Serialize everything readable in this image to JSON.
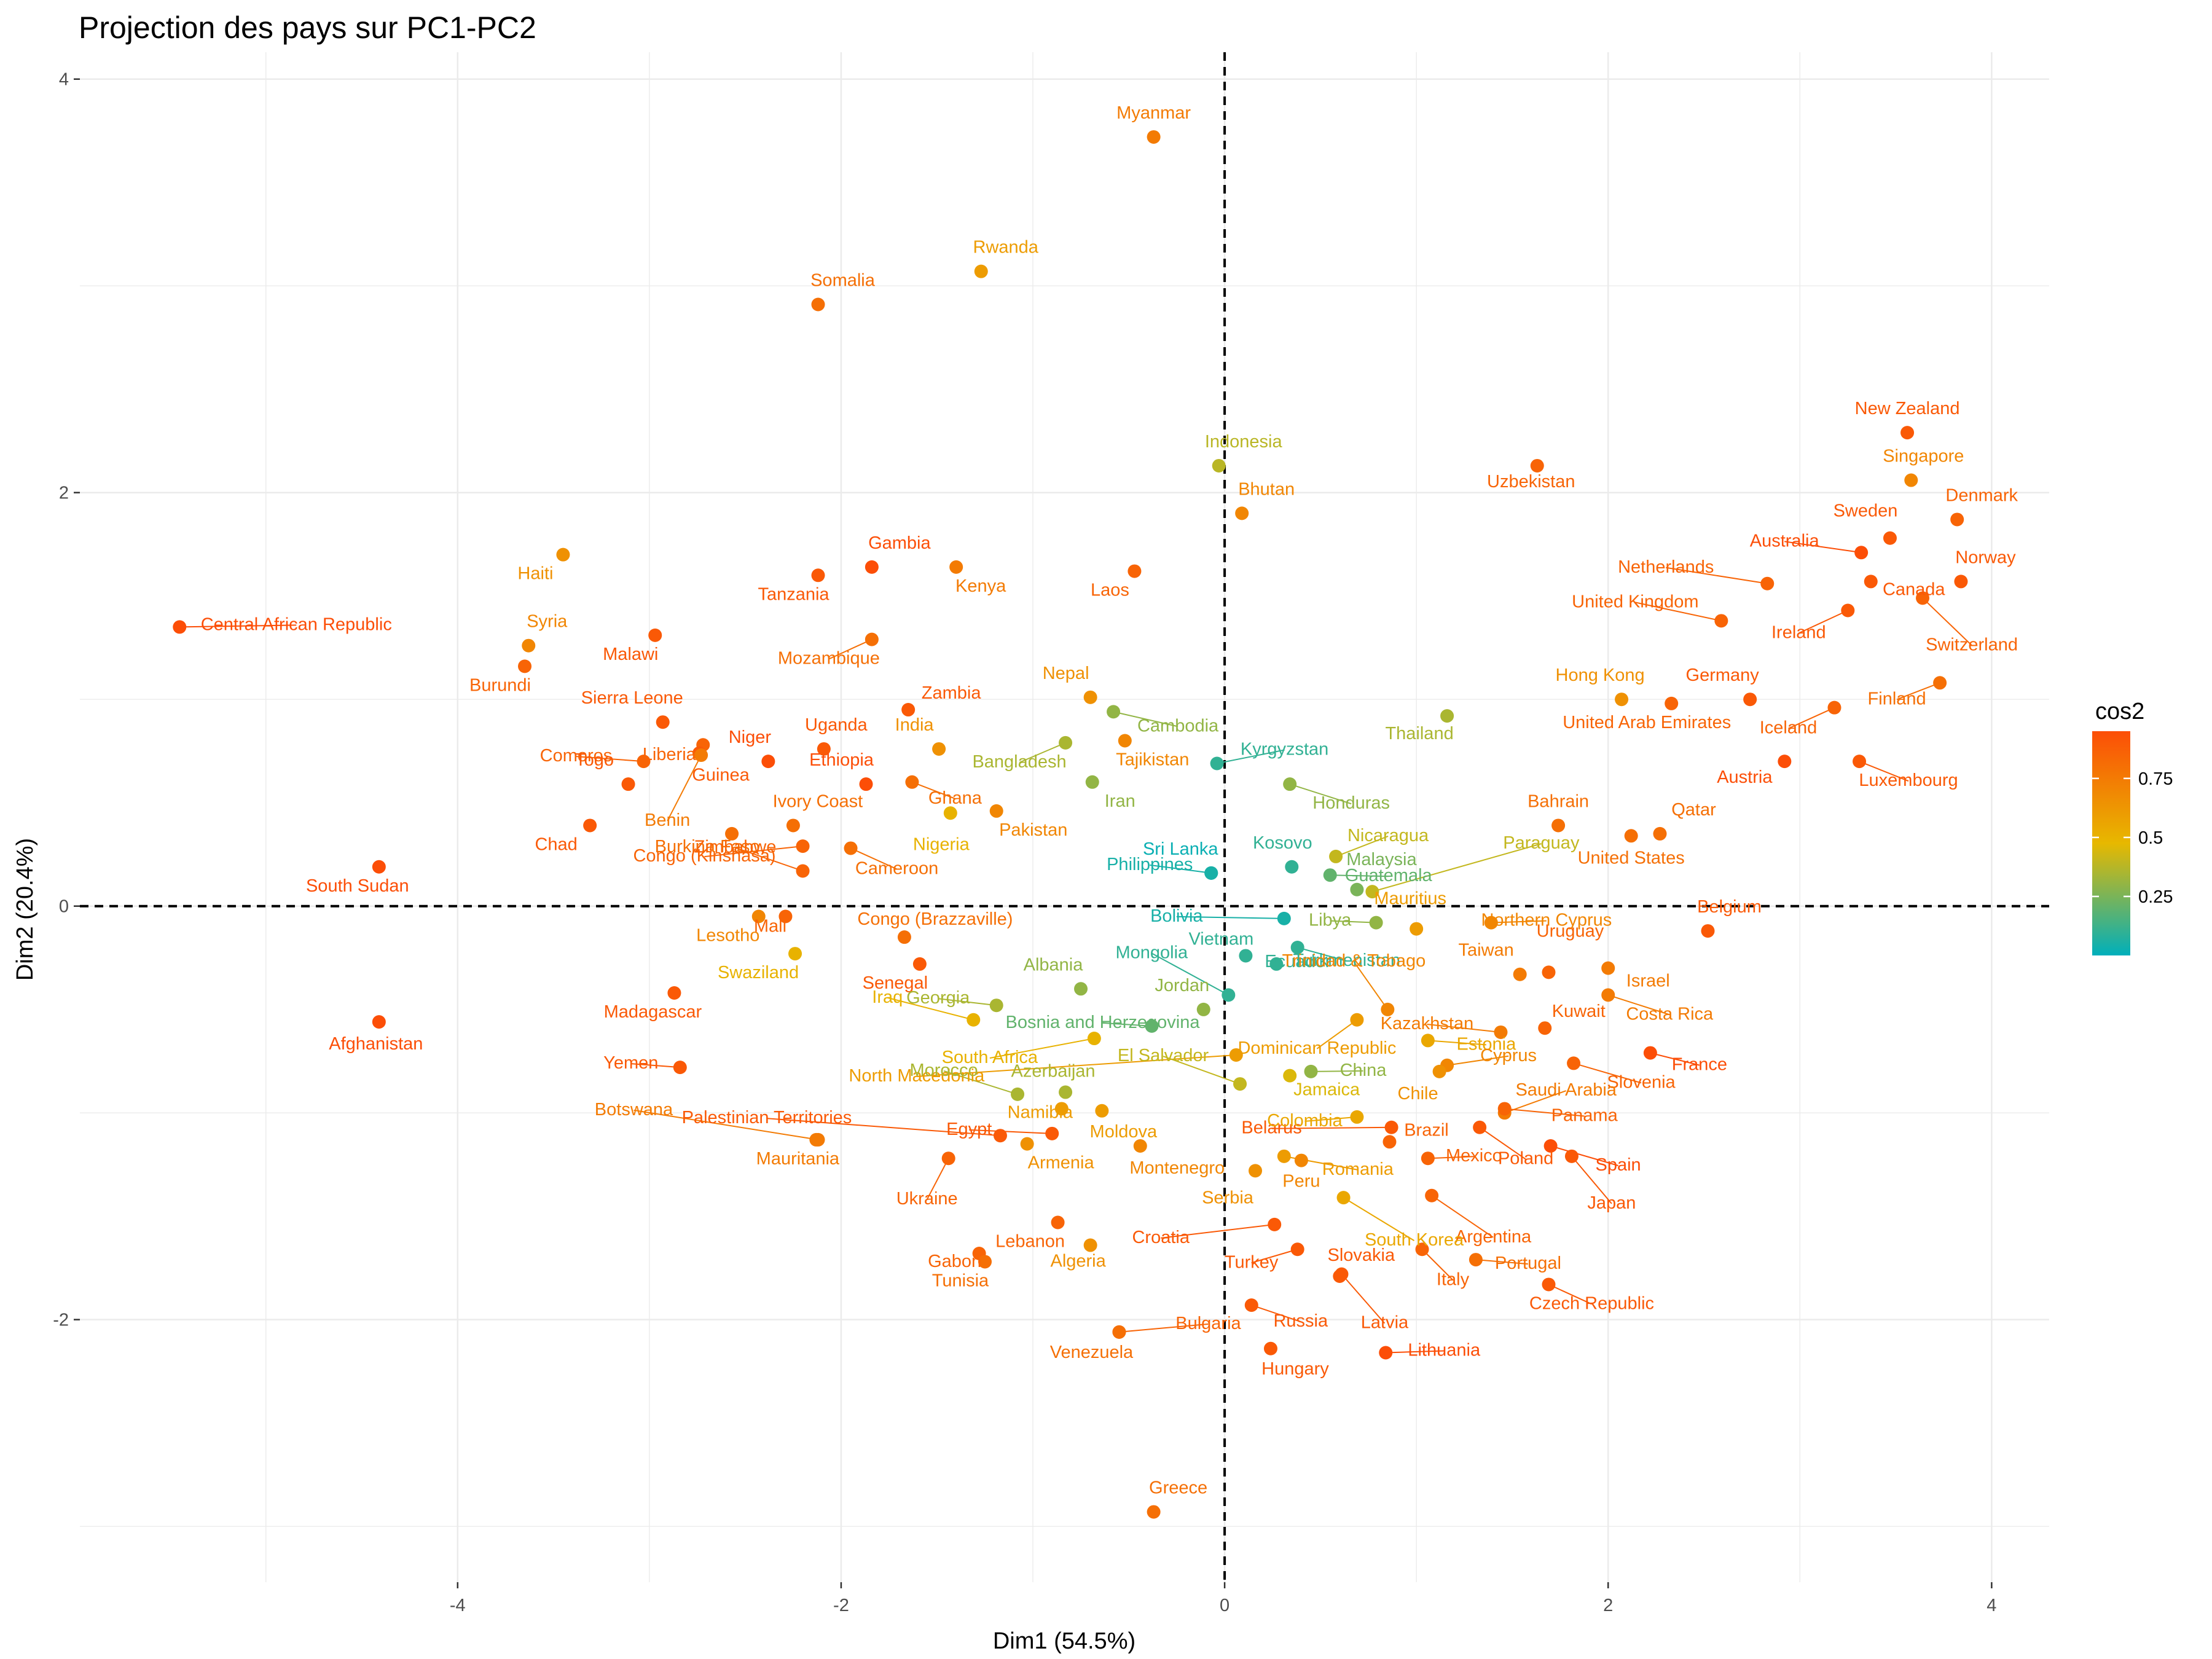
{
  "chart_data": {
    "type": "scatter",
    "title": "Projection des pays sur PC1-PC2",
    "xlabel": "Dim1 (54.5%)",
    "ylabel": "Dim2 (20.4%)",
    "xlim": [
      -5.97,
      4.3
    ],
    "ylim": [
      -3.27,
      4.13
    ],
    "xticks": [
      -4,
      -2,
      0,
      2,
      4
    ],
    "yticks": [
      -2,
      0,
      2,
      4
    ],
    "grid": true,
    "reference_lines": {
      "x": 0,
      "y": 0
    },
    "legend": {
      "title": "cos2",
      "position": "right",
      "ticks": [
        0.25,
        0.5,
        0.75
      ],
      "range": [
        0.0,
        0.95
      ],
      "colors": [
        "#00AFBB",
        "#E7B800",
        "#FC4E07"
      ]
    },
    "points": [
      {
        "label": "Myanmar",
        "x": -0.37,
        "y": 3.72,
        "cos2": 0.75
      },
      {
        "label": "Rwanda",
        "x": -1.27,
        "y": 3.07,
        "cos2": 0.6
      },
      {
        "label": "Somalia",
        "x": -2.12,
        "y": 2.91,
        "cos2": 0.8
      },
      {
        "label": "New Zealand",
        "x": 3.56,
        "y": 2.29,
        "cos2": 0.9
      },
      {
        "label": "Singapore",
        "x": 3.58,
        "y": 2.06,
        "cos2": 0.7
      },
      {
        "label": "Indonesia",
        "x": -0.03,
        "y": 2.13,
        "cos2": 0.38
      },
      {
        "label": "Uzbekistan",
        "x": 1.63,
        "y": 2.13,
        "cos2": 0.85
      },
      {
        "label": "Bhutan",
        "x": 0.09,
        "y": 1.9,
        "cos2": 0.7
      },
      {
        "label": "Denmark",
        "x": 3.82,
        "y": 1.87,
        "cos2": 0.85
      },
      {
        "label": "Sweden",
        "x": 3.47,
        "y": 1.78,
        "cos2": 0.9
      },
      {
        "label": "Australia",
        "x": 3.32,
        "y": 1.71,
        "cos2": 0.95
      },
      {
        "label": "Haiti",
        "x": -3.45,
        "y": 1.7,
        "cos2": 0.65
      },
      {
        "label": "Kenya",
        "x": -1.4,
        "y": 1.64,
        "cos2": 0.75
      },
      {
        "label": "Gambia",
        "x": -1.84,
        "y": 1.64,
        "cos2": 0.95
      },
      {
        "label": "Laos",
        "x": -0.47,
        "y": 1.62,
        "cos2": 0.85
      },
      {
        "label": "Tanzania",
        "x": -2.12,
        "y": 1.6,
        "cos2": 0.9
      },
      {
        "label": "Norway",
        "x": 3.84,
        "y": 1.57,
        "cos2": 0.9
      },
      {
        "label": "Netherlands",
        "x": 2.83,
        "y": 1.56,
        "cos2": 0.85
      },
      {
        "label": "Switzerland",
        "x": 3.64,
        "y": 1.49,
        "cos2": 0.85
      },
      {
        "label": "Canada",
        "x": 3.37,
        "y": 1.57,
        "cos2": 0.9
      },
      {
        "label": "Ireland",
        "x": 3.25,
        "y": 1.43,
        "cos2": 0.9
      },
      {
        "label": "United Kingdom",
        "x": 2.59,
        "y": 1.38,
        "cos2": 0.85
      },
      {
        "label": "Central African Republic",
        "x": -5.45,
        "y": 1.35,
        "cos2": 0.95
      },
      {
        "label": "Malawi",
        "x": -2.97,
        "y": 1.31,
        "cos2": 0.9
      },
      {
        "label": "Mozambique",
        "x": -1.84,
        "y": 1.29,
        "cos2": 0.8
      },
      {
        "label": "Syria",
        "x": -3.63,
        "y": 1.26,
        "cos2": 0.7
      },
      {
        "label": "Burundi",
        "x": -3.65,
        "y": 1.16,
        "cos2": 0.85
      },
      {
        "label": "Finland",
        "x": 3.73,
        "y": 1.08,
        "cos2": 0.8
      },
      {
        "label": "Nepal",
        "x": -0.7,
        "y": 1.01,
        "cos2": 0.65
      },
      {
        "label": "Hong Kong",
        "x": 2.07,
        "y": 1.0,
        "cos2": 0.65
      },
      {
        "label": "Germany",
        "x": 2.74,
        "y": 1.0,
        "cos2": 0.9
      },
      {
        "label": "United Arab Emirates",
        "x": 2.33,
        "y": 0.98,
        "cos2": 0.85
      },
      {
        "label": "Iceland",
        "x": 3.18,
        "y": 0.96,
        "cos2": 0.85
      },
      {
        "label": "Zambia",
        "x": -1.65,
        "y": 0.95,
        "cos2": 0.9
      },
      {
        "label": "Cambodia",
        "x": -0.58,
        "y": 0.94,
        "cos2": 0.3
      },
      {
        "label": "Thailand",
        "x": 1.16,
        "y": 0.92,
        "cos2": 0.35
      },
      {
        "label": "Sierra Leone",
        "x": -2.93,
        "y": 0.89,
        "cos2": 0.9
      },
      {
        "label": "Tajikistan",
        "x": -0.52,
        "y": 0.8,
        "cos2": 0.7
      },
      {
        "label": "Bangladesh",
        "x": -0.83,
        "y": 0.79,
        "cos2": 0.35
      },
      {
        "label": "India",
        "x": -1.49,
        "y": 0.76,
        "cos2": 0.65
      },
      {
        "label": "Uganda",
        "x": -2.09,
        "y": 0.76,
        "cos2": 0.9
      },
      {
        "label": "Liberia",
        "x": -2.72,
        "y": 0.78,
        "cos2": 0.85
      },
      {
        "label": "Niger",
        "x": -2.38,
        "y": 0.7,
        "cos2": 0.95
      },
      {
        "label": "Comoros",
        "x": -3.03,
        "y": 0.7,
        "cos2": 0.85
      },
      {
        "label": "Guinea",
        "x": -2.74,
        "y": 0.74,
        "cos2": 0.9
      },
      {
        "label": "Benin",
        "x": -2.73,
        "y": 0.73,
        "cos2": 0.75
      },
      {
        "label": "Kyrgyzstan",
        "x": -0.04,
        "y": 0.69,
        "cos2": 0.1
      },
      {
        "label": "Austria",
        "x": 2.92,
        "y": 0.7,
        "cos2": 0.95
      },
      {
        "label": "Luxembourg",
        "x": 3.31,
        "y": 0.7,
        "cos2": 0.9
      },
      {
        "label": "Iran",
        "x": -0.69,
        "y": 0.6,
        "cos2": 0.3
      },
      {
        "label": "Honduras",
        "x": 0.34,
        "y": 0.59,
        "cos2": 0.3
      },
      {
        "label": "Ethiopia",
        "x": -1.87,
        "y": 0.59,
        "cos2": 0.95
      },
      {
        "label": "Ghana",
        "x": -1.63,
        "y": 0.6,
        "cos2": 0.8
      },
      {
        "label": "Togo",
        "x": -3.11,
        "y": 0.59,
        "cos2": 0.9
      },
      {
        "label": "Pakistan",
        "x": -1.19,
        "y": 0.46,
        "cos2": 0.7
      },
      {
        "label": "Nigeria",
        "x": -1.43,
        "y": 0.45,
        "cos2": 0.5
      },
      {
        "label": "Bahrain",
        "x": 1.74,
        "y": 0.39,
        "cos2": 0.8
      },
      {
        "label": "Ivory Coast",
        "x": -2.25,
        "y": 0.39,
        "cos2": 0.8
      },
      {
        "label": "Chad",
        "x": -3.31,
        "y": 0.39,
        "cos2": 0.9
      },
      {
        "label": "Qatar",
        "x": 2.27,
        "y": 0.35,
        "cos2": 0.8
      },
      {
        "label": "United States",
        "x": 2.12,
        "y": 0.34,
        "cos2": 0.8
      },
      {
        "label": "Burkina Faso",
        "x": -2.57,
        "y": 0.35,
        "cos2": 0.8
      },
      {
        "label": "Cameroon",
        "x": -1.95,
        "y": 0.28,
        "cos2": 0.8
      },
      {
        "label": "Congo (Kinshasa)",
        "x": -2.2,
        "y": 0.29,
        "cos2": 0.85
      },
      {
        "label": "Nicaragua",
        "x": 0.58,
        "y": 0.24,
        "cos2": 0.4
      },
      {
        "label": "Paraguay",
        "x": 0.77,
        "y": 0.07,
        "cos2": 0.4
      },
      {
        "label": "South Sudan",
        "x": -4.41,
        "y": 0.19,
        "cos2": 0.95
      },
      {
        "label": "Kosovo",
        "x": 0.35,
        "y": 0.19,
        "cos2": 0.1
      },
      {
        "label": "Zimbabwe",
        "x": -2.2,
        "y": 0.17,
        "cos2": 0.85
      },
      {
        "label": "Guatemala",
        "x": 0.55,
        "y": 0.15,
        "cos2": 0.2
      },
      {
        "label": "Sri Lanka",
        "x": -0.07,
        "y": 0.16,
        "cos2": 0.02
      },
      {
        "label": "Philippines",
        "x": -0.07,
        "y": 0.16,
        "cos2": 0.05
      },
      {
        "label": "Malaysia",
        "x": 0.69,
        "y": 0.08,
        "cos2": 0.25
      },
      {
        "label": "Libya",
        "x": 0.79,
        "y": -0.08,
        "cos2": 0.3
      },
      {
        "label": "Mauritius",
        "x": 1.0,
        "y": -0.11,
        "cos2": 0.6
      },
      {
        "label": "Northern Cyprus",
        "x": 1.39,
        "y": -0.08,
        "cos2": 0.7
      },
      {
        "label": "Belgium",
        "x": 2.52,
        "y": -0.12,
        "cos2": 0.9
      },
      {
        "label": "Bolivia",
        "x": 0.31,
        "y": -0.06,
        "cos2": 0.05
      },
      {
        "label": "Lesotho",
        "x": -2.43,
        "y": -0.05,
        "cos2": 0.7
      },
      {
        "label": "Mali",
        "x": -2.29,
        "y": -0.05,
        "cos2": 0.85
      },
      {
        "label": "Congo (Brazzaville)",
        "x": -1.67,
        "y": -0.15,
        "cos2": 0.8
      },
      {
        "label": "Swaziland",
        "x": -2.24,
        "y": -0.23,
        "cos2": 0.5
      },
      {
        "label": "Vietnam",
        "x": 0.11,
        "y": -0.24,
        "cos2": 0.1
      },
      {
        "label": "Turkmenistan",
        "x": 0.38,
        "y": -0.2,
        "cos2": 0.1
      },
      {
        "label": "Ecuador",
        "x": 0.27,
        "y": -0.28,
        "cos2": 0.1
      },
      {
        "label": "Senegal",
        "x": -1.59,
        "y": -0.28,
        "cos2": 0.9
      },
      {
        "label": "Taiwan",
        "x": 1.54,
        "y": -0.33,
        "cos2": 0.75
      },
      {
        "label": "Uruguay",
        "x": 1.69,
        "y": -0.32,
        "cos2": 0.85
      },
      {
        "label": "Israel",
        "x": 2.0,
        "y": -0.3,
        "cos2": 0.75
      },
      {
        "label": "Mongolia",
        "x": 0.02,
        "y": -0.43,
        "cos2": 0.1
      },
      {
        "label": "Albania",
        "x": -0.75,
        "y": -0.4,
        "cos2": 0.3
      },
      {
        "label": "Madagascar",
        "x": -2.87,
        "y": -0.42,
        "cos2": 0.9
      },
      {
        "label": "Costa Rica",
        "x": 2.0,
        "y": -0.43,
        "cos2": 0.75
      },
      {
        "label": "Jordan",
        "x": -0.11,
        "y": -0.5,
        "cos2": 0.3
      },
      {
        "label": "Trinidad & Tobago",
        "x": 0.85,
        "y": -0.5,
        "cos2": 0.7
      },
      {
        "label": "Georgia",
        "x": -1.19,
        "y": -0.48,
        "cos2": 0.35
      },
      {
        "label": "Iraq",
        "x": -1.31,
        "y": -0.55,
        "cos2": 0.5
      },
      {
        "label": "Bosnia and Herzegovina",
        "x": -0.38,
        "y": -0.58,
        "cos2": 0.2
      },
      {
        "label": "Dominican Republic",
        "x": 0.69,
        "y": -0.55,
        "cos2": 0.6
      },
      {
        "label": "Kuwait",
        "x": 1.67,
        "y": -0.59,
        "cos2": 0.85
      },
      {
        "label": "Kazakhstan",
        "x": 1.44,
        "y": -0.61,
        "cos2": 0.75
      },
      {
        "label": "Estonia",
        "x": 1.06,
        "y": -0.65,
        "cos2": 0.55
      },
      {
        "label": "South Africa",
        "x": -0.68,
        "y": -0.64,
        "cos2": 0.5
      },
      {
        "label": "France",
        "x": 2.22,
        "y": -0.71,
        "cos2": 0.95
      },
      {
        "label": "Afghanistan",
        "x": -4.41,
        "y": -0.56,
        "cos2": 0.95
      },
      {
        "label": "North Macedonia",
        "x": 0.06,
        "y": -0.72,
        "cos2": 0.6
      },
      {
        "label": "El Salvador",
        "x": 0.08,
        "y": -0.86,
        "cos2": 0.4
      },
      {
        "label": "China",
        "x": 0.45,
        "y": -0.8,
        "cos2": 0.3
      },
      {
        "label": "Cyprus",
        "x": 1.16,
        "y": -0.77,
        "cos2": 0.7
      },
      {
        "label": "Slovenia",
        "x": 1.82,
        "y": -0.76,
        "cos2": 0.85
      },
      {
        "label": "Yemen",
        "x": -2.84,
        "y": -0.78,
        "cos2": 0.9
      },
      {
        "label": "Azerbaijan",
        "x": -0.83,
        "y": -0.9,
        "cos2": 0.35
      },
      {
        "label": "Morocco",
        "x": -1.08,
        "y": -0.91,
        "cos2": 0.35
      },
      {
        "label": "Jamaica",
        "x": 0.34,
        "y": -0.82,
        "cos2": 0.45
      },
      {
        "label": "Chile",
        "x": 1.12,
        "y": -0.8,
        "cos2": 0.65
      },
      {
        "label": "Saudi Arabia",
        "x": 1.46,
        "y": -1.0,
        "cos2": 0.75
      },
      {
        "label": "Panama",
        "x": 1.46,
        "y": -0.98,
        "cos2": 0.85
      },
      {
        "label": "Namibia",
        "x": -0.85,
        "y": -0.98,
        "cos2": 0.6
      },
      {
        "label": "Moldova",
        "x": -0.64,
        "y": -0.99,
        "cos2": 0.6
      },
      {
        "label": "Botswana",
        "x": -2.12,
        "y": -1.13,
        "cos2": 0.75
      },
      {
        "label": "Palestinian Territories",
        "x": -1.17,
        "y": -1.11,
        "cos2": 0.9
      },
      {
        "label": "Egypt",
        "x": -0.9,
        "y": -1.1,
        "cos2": 0.9
      },
      {
        "label": "Mauritania",
        "x": -2.13,
        "y": -1.13,
        "cos2": 0.75
      },
      {
        "label": "Belarus",
        "x": 0.87,
        "y": -1.07,
        "cos2": 0.9
      },
      {
        "label": "Colombia",
        "x": 0.69,
        "y": -1.02,
        "cos2": 0.55
      },
      {
        "label": "Brazil",
        "x": 0.86,
        "y": -1.14,
        "cos2": 0.85
      },
      {
        "label": "Poland",
        "x": 1.33,
        "y": -1.07,
        "cos2": 0.9
      },
      {
        "label": "Spain",
        "x": 1.7,
        "y": -1.16,
        "cos2": 0.95
      },
      {
        "label": "Japan",
        "x": 1.81,
        "y": -1.21,
        "cos2": 0.9
      },
      {
        "label": "Armenia",
        "x": -1.03,
        "y": -1.15,
        "cos2": 0.65
      },
      {
        "label": "Ukraine",
        "x": -1.44,
        "y": -1.22,
        "cos2": 0.85
      },
      {
        "label": "Montenegro",
        "x": -0.44,
        "y": -1.16,
        "cos2": 0.7
      },
      {
        "label": "Romania",
        "x": 0.31,
        "y": -1.21,
        "cos2": 0.6
      },
      {
        "label": "Peru",
        "x": 0.4,
        "y": -1.23,
        "cos2": 0.7
      },
      {
        "label": "Serbia",
        "x": 0.16,
        "y": -1.28,
        "cos2": 0.65
      },
      {
        "label": "Mexico",
        "x": 1.06,
        "y": -1.22,
        "cos2": 0.85
      },
      {
        "label": "Argentina",
        "x": 1.08,
        "y": -1.4,
        "cos2": 0.85
      },
      {
        "label": "South Korea",
        "x": 0.62,
        "y": -1.41,
        "cos2": 0.55
      },
      {
        "label": "Lebanon",
        "x": -0.87,
        "y": -1.53,
        "cos2": 0.85
      },
      {
        "label": "Croatia",
        "x": 0.26,
        "y": -1.54,
        "cos2": 0.9
      },
      {
        "label": "Gabon",
        "x": -1.28,
        "y": -1.68,
        "cos2": 0.85
      },
      {
        "label": "Algeria",
        "x": -0.7,
        "y": -1.64,
        "cos2": 0.65
      },
      {
        "label": "Tunisia",
        "x": -1.25,
        "y": -1.72,
        "cos2": 0.8
      },
      {
        "label": "Turkey",
        "x": 0.38,
        "y": -1.66,
        "cos2": 0.9
      },
      {
        "label": "Slovakia",
        "x": 0.6,
        "y": -1.79,
        "cos2": 0.9
      },
      {
        "label": "Italy",
        "x": 1.03,
        "y": -1.66,
        "cos2": 0.85
      },
      {
        "label": "Portugal",
        "x": 1.31,
        "y": -1.71,
        "cos2": 0.8
      },
      {
        "label": "Czech Republic",
        "x": 1.69,
        "y": -1.83,
        "cos2": 0.9
      },
      {
        "label": "Russia",
        "x": 0.14,
        "y": -1.93,
        "cos2": 0.9
      },
      {
        "label": "Latvia",
        "x": 0.61,
        "y": -1.78,
        "cos2": 0.9
      },
      {
        "label": "Bulgaria",
        "x": -0.55,
        "y": -2.06,
        "cos2": 0.85
      },
      {
        "label": "Venezuela",
        "x": -0.55,
        "y": -2.06,
        "cos2": 0.8
      },
      {
        "label": "Hungary",
        "x": 0.24,
        "y": -2.14,
        "cos2": 0.9
      },
      {
        "label": "Lithuania",
        "x": 0.84,
        "y": -2.16,
        "cos2": 0.95
      },
      {
        "label": "Greece",
        "x": -0.37,
        "y": -2.93,
        "cos2": 0.8
      }
    ]
  }
}
